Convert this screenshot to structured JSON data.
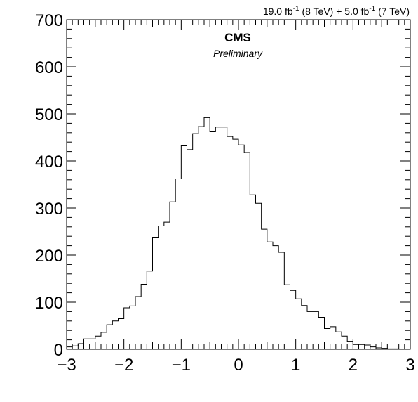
{
  "chart_data": {
    "type": "histogram",
    "xlim": [
      -3,
      3
    ],
    "ylim": [
      0,
      700
    ],
    "bin_width": 0.1,
    "bin_edges_start": -3.0,
    "values": [
      5,
      7,
      12,
      22,
      22,
      28,
      36,
      52,
      60,
      65,
      88,
      92,
      112,
      138,
      166,
      238,
      262,
      270,
      313,
      362,
      432,
      424,
      458,
      473,
      492,
      462,
      472,
      472,
      452,
      446,
      434,
      418,
      328,
      310,
      255,
      228,
      220,
      206,
      137,
      125,
      107,
      93,
      80,
      80,
      68,
      44,
      48,
      37,
      28,
      17,
      10,
      10,
      9,
      5,
      3,
      2,
      1,
      1,
      0,
      0
    ],
    "x_ticks": [
      -3,
      -2,
      -1,
      0,
      1,
      2,
      3
    ],
    "x_tick_labels": [
      "−3",
      "−2",
      "−1",
      "0",
      "1",
      "2",
      "3"
    ],
    "y_ticks": [
      0,
      100,
      200,
      300,
      400,
      500,
      600,
      700
    ],
    "y_tick_labels": [
      "0",
      "100",
      "200",
      "300",
      "400",
      "500",
      "600",
      "700"
    ],
    "title": "",
    "xlabel": "",
    "ylabel": "",
    "grid": false,
    "line_color": "#000000"
  },
  "header": {
    "lumi_8tev_value": "19.0 fb",
    "lumi_8tev_exp": "-1",
    "lumi_8tev_energy": " (8 TeV) + 5.0 fb",
    "lumi_7tev_exp": "-1",
    "lumi_7tev_energy": " (7 TeV)",
    "experiment": "CMS",
    "status": "Preliminary"
  }
}
